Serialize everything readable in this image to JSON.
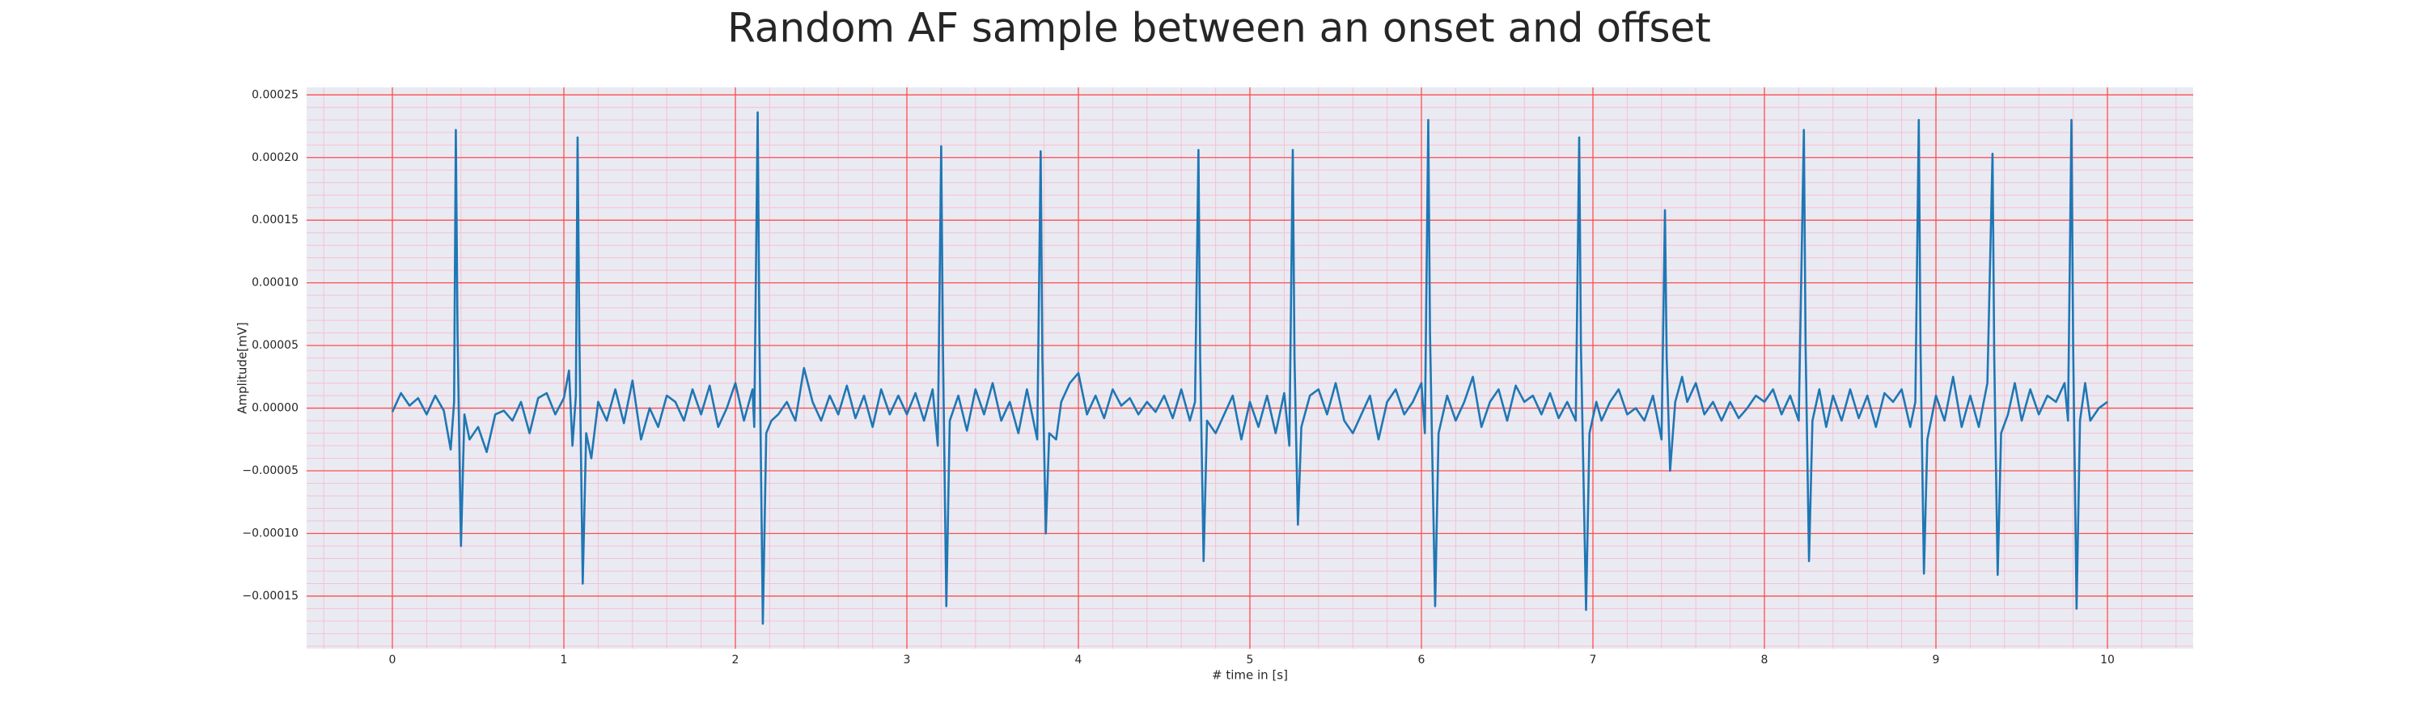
{
  "chart_data": {
    "type": "line",
    "title": "Random AF sample between an onset and offset",
    "xlabel": "# time in [s]",
    "ylabel": "Amplitude[mV]",
    "color": "#1f77b4",
    "grid": true,
    "grid_color": "#ff4d4d",
    "minor_grid_color": "#f4c2d0",
    "background": "#eaeaf2",
    "xlim": [
      -0.5,
      10.5
    ],
    "ylim": [
      -0.000192,
      0.000256
    ],
    "xticks": [
      0,
      1,
      2,
      3,
      4,
      5,
      6,
      7,
      8,
      9,
      10
    ],
    "yticks": [
      {
        "value": -0.00015,
        "label": "−0.00015"
      },
      {
        "value": -0.0001,
        "label": "−0.00010"
      },
      {
        "value": -5e-05,
        "label": "−0.00005"
      },
      {
        "value": 0,
        "label": "0.00000"
      },
      {
        "value": 5e-05,
        "label": "0.00005"
      },
      {
        "value": 0.0001,
        "label": "0.00010"
      },
      {
        "value": 0.00015,
        "label": "0.00015"
      },
      {
        "value": 0.0002,
        "label": "0.00020"
      },
      {
        "value": 0.00025,
        "label": "0.00025"
      }
    ],
    "xminorticks": [
      -0.4,
      -0.2,
      0.2,
      0.4,
      0.6,
      0.8,
      1.2,
      1.4,
      1.6,
      1.8,
      2.2,
      2.4,
      2.6,
      2.8,
      3.2,
      3.4,
      3.6,
      3.8,
      4.2,
      4.4,
      4.6,
      4.8,
      5.2,
      5.4,
      5.6,
      5.8,
      6.2,
      6.4,
      6.6,
      6.8,
      7.2,
      7.4,
      7.6,
      7.8,
      8.2,
      8.4,
      8.6,
      8.8,
      9.2,
      9.4,
      9.6,
      9.8,
      10.2,
      10.4
    ],
    "yminorticks": [
      -0.00019,
      -0.00018,
      -0.00017,
      -0.00016,
      -0.00014,
      -0.00013,
      -0.00012,
      -0.00011,
      -9e-05,
      -8e-05,
      -7e-05,
      -6e-05,
      -4e-05,
      -3e-05,
      -2e-05,
      -1e-05,
      1e-05,
      2e-05,
      3e-05,
      4e-05,
      6e-05,
      7e-05,
      8e-05,
      9e-05,
      0.00011,
      0.00012,
      0.00013,
      0.00014,
      0.00016,
      0.00017,
      0.00018,
      0.00019,
      0.00021,
      0.00022,
      0.00023,
      0.00024
    ],
    "x": [
      0,
      0.05,
      0.1,
      0.15,
      0.2,
      0.25,
      0.3,
      0.34,
      0.36,
      0.37,
      0.38,
      0.4,
      0.42,
      0.45,
      0.5,
      0.55,
      0.6,
      0.65,
      0.7,
      0.75,
      0.8,
      0.85,
      0.9,
      0.95,
      1.0,
      1.03,
      1.05,
      1.07,
      1.08,
      1.09,
      1.11,
      1.13,
      1.16,
      1.2,
      1.25,
      1.3,
      1.35,
      1.4,
      1.45,
      1.5,
      1.55,
      1.6,
      1.65,
      1.7,
      1.75,
      1.8,
      1.85,
      1.9,
      1.95,
      2.0,
      2.05,
      2.1,
      2.11,
      2.13,
      2.14,
      2.16,
      2.18,
      2.21,
      2.25,
      2.3,
      2.35,
      2.4,
      2.45,
      2.5,
      2.55,
      2.6,
      2.65,
      2.7,
      2.75,
      2.8,
      2.85,
      2.9,
      2.95,
      3.0,
      3.05,
      3.1,
      3.15,
      3.18,
      3.2,
      3.21,
      3.23,
      3.25,
      3.3,
      3.35,
      3.4,
      3.45,
      3.5,
      3.55,
      3.6,
      3.65,
      3.7,
      3.76,
      3.78,
      3.79,
      3.81,
      3.83,
      3.87,
      3.9,
      3.95,
      4.0,
      4.05,
      4.1,
      4.15,
      4.2,
      4.25,
      4.3,
      4.35,
      4.4,
      4.45,
      4.5,
      4.55,
      4.6,
      4.65,
      4.68,
      4.7,
      4.71,
      4.73,
      4.75,
      4.8,
      4.85,
      4.9,
      4.95,
      5.0,
      5.05,
      5.1,
      5.15,
      5.2,
      5.23,
      5.25,
      5.26,
      5.28,
      5.3,
      5.35,
      5.4,
      5.45,
      5.5,
      5.55,
      5.6,
      5.65,
      5.7,
      5.75,
      5.8,
      5.85,
      5.9,
      5.95,
      6.0,
      6.02,
      6.04,
      6.05,
      6.08,
      6.1,
      6.15,
      6.2,
      6.25,
      6.3,
      6.35,
      6.4,
      6.45,
      6.5,
      6.55,
      6.6,
      6.65,
      6.7,
      6.75,
      6.8,
      6.85,
      6.9,
      6.92,
      6.93,
      6.96,
      6.98,
      7.02,
      7.05,
      7.1,
      7.15,
      7.2,
      7.25,
      7.3,
      7.35,
      7.4,
      7.42,
      7.43,
      7.45,
      7.48,
      7.52,
      7.55,
      7.6,
      7.65,
      7.7,
      7.75,
      7.8,
      7.85,
      7.9,
      7.95,
      8.0,
      8.05,
      8.1,
      8.15,
      8.2,
      8.23,
      8.24,
      8.26,
      8.28,
      8.32,
      8.36,
      8.4,
      8.45,
      8.5,
      8.55,
      8.6,
      8.65,
      8.7,
      8.75,
      8.8,
      8.85,
      8.88,
      8.9,
      8.91,
      8.93,
      8.95,
      9.0,
      9.05,
      9.1,
      9.15,
      9.2,
      9.25,
      9.3,
      9.33,
      9.34,
      9.36,
      9.38,
      9.42,
      9.46,
      9.5,
      9.55,
      9.6,
      9.65,
      9.7,
      9.75,
      9.77,
      9.79,
      9.8,
      9.82,
      9.84,
      9.87,
      9.9,
      9.95,
      10.0
    ],
    "values": [
      -3e-06,
      1.2e-05,
      2e-06,
      8e-06,
      -5e-06,
      1e-05,
      -2e-06,
      -3.3e-05,
      5e-06,
      0.000222,
      6e-05,
      -0.00011,
      -5e-06,
      -2.5e-05,
      -1.5e-05,
      -3.5e-05,
      -5e-06,
      -2e-06,
      -1e-05,
      5e-06,
      -2e-05,
      8e-06,
      1.2e-05,
      -5e-06,
      8e-06,
      3e-05,
      -3e-05,
      1e-05,
      0.000216,
      6e-05,
      -0.00014,
      -2e-05,
      -4e-05,
      5e-06,
      -1e-05,
      1.5e-05,
      -1.2e-05,
      2.2e-05,
      -2.5e-05,
      0,
      -1.5e-05,
      1e-05,
      5e-06,
      -1e-05,
      1.5e-05,
      -5e-06,
      1.8e-05,
      -1.5e-05,
      0,
      2e-05,
      -1e-05,
      1.5e-05,
      -1.5e-05,
      0.000236,
      6e-05,
      -0.000172,
      -2e-05,
      -1e-05,
      -5e-06,
      5e-06,
      -1e-05,
      3.2e-05,
      5e-06,
      -1e-05,
      1e-05,
      -5e-06,
      1.8e-05,
      -8e-06,
      1e-05,
      -1.5e-05,
      1.5e-05,
      -5e-06,
      1e-05,
      -5e-06,
      1.2e-05,
      -1e-05,
      1.5e-05,
      -3e-05,
      0.000209,
      5e-05,
      -0.000158,
      -1e-05,
      1e-05,
      -1.8e-05,
      1.5e-05,
      -5e-06,
      2e-05,
      -1e-05,
      5e-06,
      -2e-05,
      1.5e-05,
      -2.5e-05,
      0.000205,
      4e-05,
      -0.0001,
      -2e-05,
      -2.5e-05,
      5e-06,
      2e-05,
      2.8e-05,
      -5e-06,
      1e-05,
      -8e-06,
      1.5e-05,
      2e-06,
      8e-06,
      -5e-06,
      5e-06,
      -3e-06,
      1e-05,
      -8e-06,
      1.5e-05,
      -1e-05,
      5e-06,
      0.000206,
      4e-05,
      -0.000122,
      -1e-05,
      -2e-05,
      -5e-06,
      1e-05,
      -2.5e-05,
      5e-06,
      -1.5e-05,
      1e-05,
      -2e-05,
      1.2e-05,
      -3e-05,
      0.000206,
      4e-05,
      -9.3e-05,
      -1.5e-05,
      1e-05,
      1.5e-05,
      -5e-06,
      2e-05,
      -1e-05,
      -2e-05,
      -5e-06,
      1e-05,
      -2.5e-05,
      5e-06,
      1.5e-05,
      -5e-06,
      5e-06,
      2e-05,
      -2e-05,
      0.00023,
      6e-05,
      -0.000158,
      -2e-05,
      1e-05,
      -1e-05,
      5e-06,
      2.5e-05,
      -1.5e-05,
      5e-06,
      1.5e-05,
      -1e-05,
      1.8e-05,
      5e-06,
      1e-05,
      -5e-06,
      1.2e-05,
      -8e-06,
      5e-06,
      -1e-05,
      0.000216,
      5e-05,
      -0.000161,
      -2e-05,
      5e-06,
      -1e-05,
      5e-06,
      1.5e-05,
      -5e-06,
      0,
      -1e-05,
      1e-05,
      -2.5e-05,
      0.000158,
      4e-05,
      -5e-05,
      5e-06,
      2.5e-05,
      5e-06,
      2e-05,
      -5e-06,
      5e-06,
      -1e-05,
      5e-06,
      -8e-06,
      0,
      1e-05,
      5e-06,
      1.5e-05,
      -5e-06,
      1e-05,
      -1e-05,
      0.000222,
      5e-05,
      -0.000122,
      -1e-05,
      1.5e-05,
      -1.5e-05,
      1e-05,
      -1e-05,
      1.5e-05,
      -8e-06,
      1e-05,
      -1.5e-05,
      1.2e-05,
      5e-06,
      1.5e-05,
      -1.5e-05,
      5e-06,
      0.00023,
      5e-05,
      -0.000132,
      -2.5e-05,
      1e-05,
      -1e-05,
      2.5e-05,
      -1.5e-05,
      1e-05,
      -1.5e-05,
      2e-05,
      0.000203,
      4e-05,
      -0.000133,
      -2e-05,
      -5e-06,
      2e-05,
      -1e-05,
      1.5e-05,
      -5e-06,
      1e-05,
      5e-06,
      2e-05,
      -1e-05,
      0.00023,
      5e-05,
      -0.00016,
      -1e-05,
      2e-05,
      -1e-05,
      0,
      5e-06
    ]
  }
}
